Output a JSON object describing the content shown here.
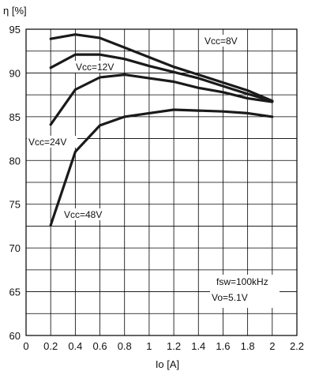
{
  "chart_data": {
    "type": "line",
    "ylabel": "η [%]",
    "xlabel": "Io  [A]",
    "xlim": [
      0,
      2.2
    ],
    "ylim": [
      60,
      95
    ],
    "x_ticks": [
      "0",
      "0.2",
      "0.4",
      "0.6",
      "0.8",
      "1",
      "1.2",
      "1.4",
      "1.6",
      "1.8",
      "2",
      "2.2"
    ],
    "y_ticks": [
      "60",
      "65",
      "70",
      "75",
      "80",
      "85",
      "90",
      "95"
    ],
    "grid": true,
    "series": [
      {
        "name": "Vcc=8V",
        "x": [
          0.2,
          0.4,
          0.6,
          0.8,
          1.0,
          1.2,
          1.4,
          1.6,
          1.8,
          2.0
        ],
        "y": [
          93.9,
          94.4,
          94.0,
          92.9,
          91.8,
          90.7,
          89.8,
          88.9,
          88.0,
          86.8
        ]
      },
      {
        "name": "Vcc=12V",
        "x": [
          0.2,
          0.4,
          0.6,
          0.8,
          1.0,
          1.2,
          1.4,
          1.6,
          1.8,
          2.0
        ],
        "y": [
          90.6,
          92.1,
          92.1,
          91.6,
          90.8,
          90.1,
          89.4,
          88.5,
          87.6,
          86.8
        ]
      },
      {
        "name": "Vcc=24V",
        "x": [
          0.2,
          0.4,
          0.6,
          0.8,
          1.0,
          1.2,
          1.4,
          1.6,
          1.8,
          2.0
        ],
        "y": [
          84.1,
          88.1,
          89.5,
          89.8,
          89.4,
          89.0,
          88.3,
          87.8,
          87.1,
          86.7
        ]
      },
      {
        "name": "Vcc=48V",
        "x": [
          0.2,
          0.4,
          0.6,
          0.8,
          1.0,
          1.2,
          1.4,
          1.6,
          1.8,
          2.0
        ],
        "y": [
          72.6,
          81.0,
          84.0,
          85.0,
          85.4,
          85.8,
          85.7,
          85.6,
          85.4,
          85.0
        ]
      }
    ],
    "annotations": [
      "fsw=100kHz",
      "Vo=5.1V"
    ]
  }
}
